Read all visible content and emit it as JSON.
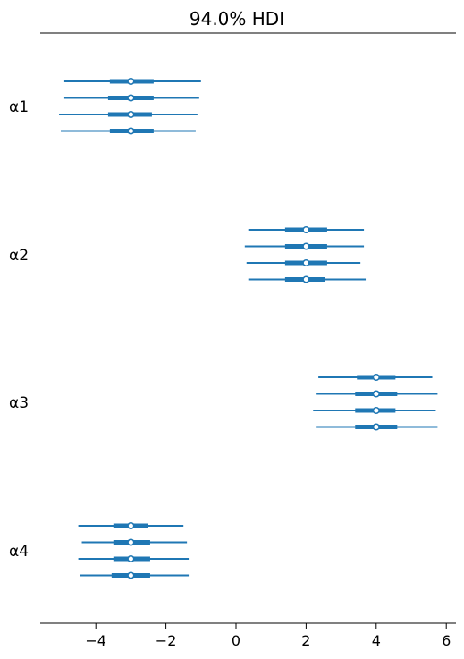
{
  "chart_data": {
    "type": "forest",
    "title": "94.0% HDI",
    "xlabel": "",
    "ylabel": "",
    "xlim": [
      -5.6,
      6.3
    ],
    "xticks": [
      -4,
      -2,
      0,
      2,
      4,
      6
    ],
    "xtick_labels": [
      "−4",
      "−2",
      "0",
      "2",
      "4",
      "6"
    ],
    "grid": false,
    "color": "#1f77b4",
    "parameters": [
      {
        "label": "α1",
        "chains": [
          {
            "hdi_low": -4.9,
            "q25": -3.6,
            "median": -3.0,
            "q75": -2.35,
            "hdi_high": -1.0
          },
          {
            "hdi_low": -4.9,
            "q25": -3.65,
            "median": -3.0,
            "q75": -2.35,
            "hdi_high": -1.05
          },
          {
            "hdi_low": -5.05,
            "q25": -3.65,
            "median": -3.0,
            "q75": -2.4,
            "hdi_high": -1.1
          },
          {
            "hdi_low": -5.0,
            "q25": -3.6,
            "median": -3.0,
            "q75": -2.35,
            "hdi_high": -1.15
          }
        ]
      },
      {
        "label": "α2",
        "chains": [
          {
            "hdi_low": 0.35,
            "q25": 1.4,
            "median": 2.0,
            "q75": 2.6,
            "hdi_high": 3.65
          },
          {
            "hdi_low": 0.25,
            "q25": 1.4,
            "median": 2.0,
            "q75": 2.6,
            "hdi_high": 3.65
          },
          {
            "hdi_low": 0.3,
            "q25": 1.4,
            "median": 2.0,
            "q75": 2.6,
            "hdi_high": 3.55
          },
          {
            "hdi_low": 0.35,
            "q25": 1.4,
            "median": 2.0,
            "q75": 2.55,
            "hdi_high": 3.7
          }
        ]
      },
      {
        "label": "α3",
        "chains": [
          {
            "hdi_low": 2.35,
            "q25": 3.45,
            "median": 4.0,
            "q75": 4.55,
            "hdi_high": 5.6
          },
          {
            "hdi_low": 2.3,
            "q25": 3.4,
            "median": 4.0,
            "q75": 4.6,
            "hdi_high": 5.75
          },
          {
            "hdi_low": 2.2,
            "q25": 3.4,
            "median": 4.0,
            "q75": 4.55,
            "hdi_high": 5.7
          },
          {
            "hdi_low": 2.3,
            "q25": 3.4,
            "median": 4.0,
            "q75": 4.6,
            "hdi_high": 5.75
          }
        ]
      },
      {
        "label": "α4",
        "chains": [
          {
            "hdi_low": -4.5,
            "q25": -3.5,
            "median": -3.0,
            "q75": -2.5,
            "hdi_high": -1.5
          },
          {
            "hdi_low": -4.4,
            "q25": -3.5,
            "median": -3.0,
            "q75": -2.45,
            "hdi_high": -1.4
          },
          {
            "hdi_low": -4.5,
            "q25": -3.5,
            "median": -3.0,
            "q75": -2.45,
            "hdi_high": -1.35
          },
          {
            "hdi_low": -4.45,
            "q25": -3.55,
            "median": -3.0,
            "q75": -2.45,
            "hdi_high": -1.35
          }
        ]
      }
    ]
  }
}
